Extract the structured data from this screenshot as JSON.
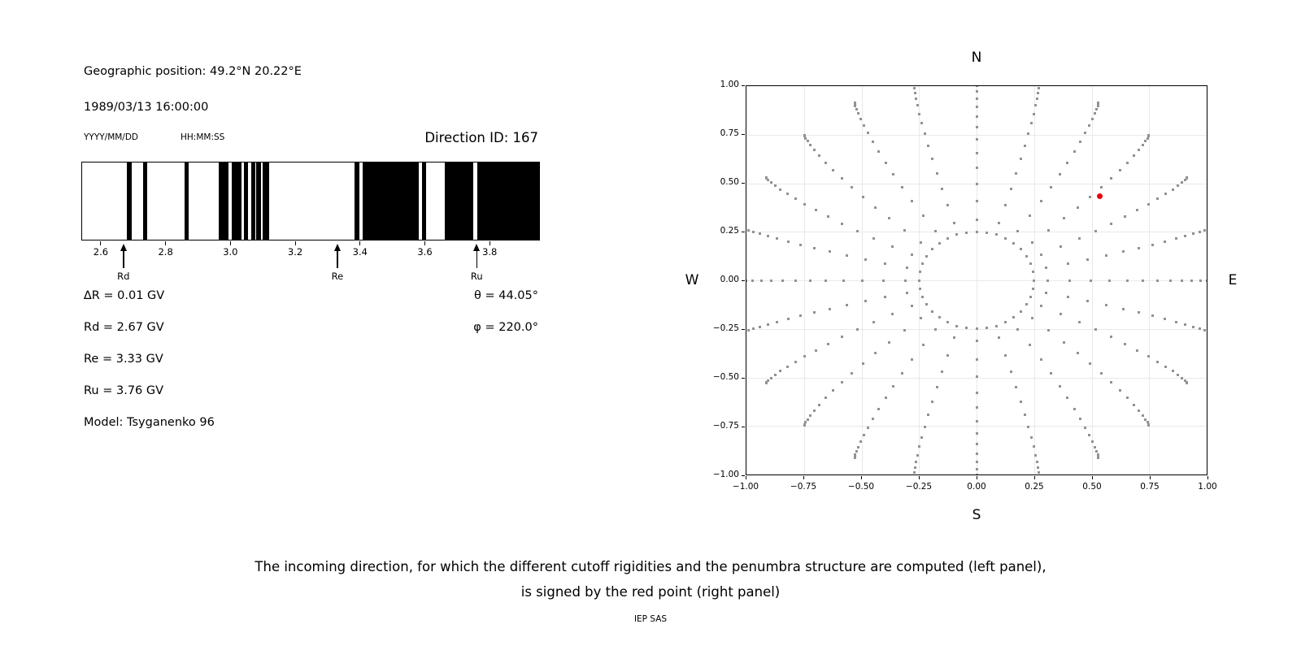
{
  "header": {
    "geo_position": "Geographic position: 49.2°N 20.22°E",
    "datetime": "1989/03/13 16:00:00",
    "date_format_label": "YYYY/MM/DD",
    "time_format_label": "HH:MM:SS",
    "direction_id": "Direction ID: 167"
  },
  "penumbra": {
    "range_gv": [
      2.54,
      3.955
    ],
    "black_bands_gv": [
      [
        2.678,
        2.694
      ],
      [
        2.728,
        2.742
      ],
      [
        2.856,
        2.87
      ],
      [
        2.962,
        2.992
      ],
      [
        3.004,
        3.034
      ],
      [
        3.042,
        3.054
      ],
      [
        3.064,
        3.076
      ],
      [
        3.08,
        3.094
      ],
      [
        3.098,
        3.118
      ],
      [
        3.384,
        3.398
      ],
      [
        3.408,
        3.582
      ],
      [
        3.592,
        3.606
      ],
      [
        3.662,
        3.752
      ],
      [
        3.764,
        3.955
      ]
    ],
    "ticks_gv": [
      2.6,
      2.8,
      3.0,
      3.2,
      3.4,
      3.6,
      3.8
    ],
    "tick_labels": [
      "2.6",
      "2.8",
      "3.0",
      "3.2",
      "3.4",
      "3.6",
      "3.8"
    ],
    "arrows": [
      {
        "label": "Rd",
        "value_gv": 2.67
      },
      {
        "label": "Re",
        "value_gv": 3.33
      },
      {
        "label": "Ru",
        "value_gv": 3.76
      }
    ]
  },
  "values": {
    "delta_r": "∆R = 0.01 GV",
    "rd": "Rd = 2.67 GV",
    "re": "Re = 3.33 GV",
    "ru": "Ru = 3.76 GV",
    "model": "Model: Tsyganenko 96",
    "theta": "θ = 44.05°",
    "phi": "φ = 220.0°"
  },
  "chart_data": {
    "type": "scatter",
    "label_top": "N",
    "label_bottom": "S",
    "label_left": "W",
    "label_right": "E",
    "xlim": [
      -1,
      1
    ],
    "ylim": [
      -1,
      1
    ],
    "x_tick_labels": [
      "−1.00",
      "−0.75",
      "−0.50",
      "−0.25",
      "0.00",
      "0.25",
      "0.50",
      "0.75",
      "1.00"
    ],
    "y_tick_labels": [
      "1.00",
      "0.75",
      "0.50",
      "0.25",
      "0.00",
      "−0.25",
      "−0.50",
      "−0.75",
      "−1.00"
    ],
    "grid": true,
    "marker_color": "#929292",
    "grid_color": "#e9e9e9",
    "ring": {
      "radius": 0.25,
      "count": 36
    },
    "rays": {
      "count": 24,
      "azimuth_step_deg": 15,
      "r_start": 0.31,
      "r_end": 1.055,
      "points_per_ray": 16,
      "spacing_power": 2.0,
      "tip_curl_deg": 6
    },
    "red_point": {
      "x": 0.536,
      "y": 0.433,
      "color": "#e8000b"
    }
  },
  "caption": {
    "line1": "The incoming direction, for which the different cutoff rigidities and the penumbra structure are computed (left panel),",
    "line2": "is signed by the red point (right panel)",
    "credit": "IEP SAS"
  }
}
